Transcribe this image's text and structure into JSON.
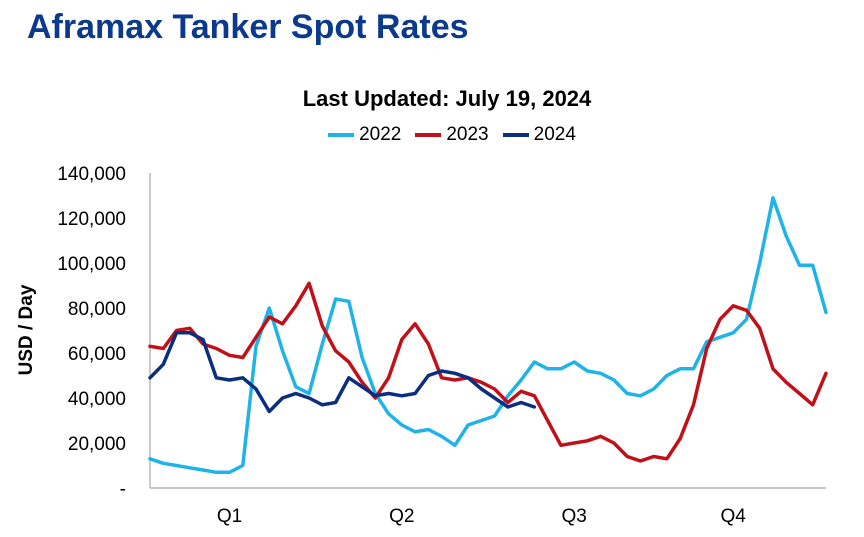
{
  "page": {
    "title": "Aframax Tanker Spot Rates"
  },
  "chart_data": {
    "type": "line",
    "title": "Last Updated: July 19, 2024",
    "xlabel": "",
    "ylabel": "USD / Day",
    "ylim": [
      0,
      140000
    ],
    "yticks": [
      0,
      20000,
      40000,
      60000,
      80000,
      100000,
      120000,
      140000
    ],
    "ytick_labels": [
      "-",
      "20,000",
      "40,000",
      "60,000",
      "80,000",
      "100,000",
      "120,000",
      "140,000"
    ],
    "x_unit": "week",
    "xlim": [
      1,
      52
    ],
    "xticks": [
      7,
      20,
      33,
      45
    ],
    "xtick_labels": [
      "Q1",
      "Q2",
      "Q3",
      "Q4"
    ],
    "grid": false,
    "legend": "top-center",
    "series": [
      {
        "name": "2022",
        "color": "#1fb3e8",
        "x": [
          1,
          2,
          3,
          4,
          5,
          6,
          7,
          8,
          9,
          10,
          11,
          12,
          13,
          14,
          15,
          16,
          17,
          18,
          19,
          20,
          21,
          22,
          23,
          24,
          25,
          26,
          27,
          28,
          29,
          30,
          31,
          32,
          33,
          34,
          35,
          36,
          37,
          38,
          39,
          40,
          41,
          42,
          43,
          44,
          45,
          46,
          47,
          48,
          49,
          50,
          51,
          52
        ],
        "values": [
          13000,
          11000,
          10000,
          9000,
          8000,
          7000,
          7000,
          10000,
          63000,
          80000,
          61000,
          45000,
          42000,
          64000,
          84000,
          83000,
          58000,
          42000,
          33000,
          28000,
          25000,
          26000,
          23000,
          19000,
          28000,
          30000,
          32000,
          41000,
          48000,
          56000,
          53000,
          53000,
          56000,
          52000,
          51000,
          48000,
          42000,
          41000,
          44000,
          50000,
          53000,
          53000,
          65000,
          67000,
          69000,
          75000,
          100000,
          129000,
          112000,
          99000,
          99000,
          78000
        ]
      },
      {
        "name": "2023",
        "color": "#c0111a",
        "x": [
          1,
          2,
          3,
          4,
          5,
          6,
          7,
          8,
          9,
          10,
          11,
          12,
          13,
          14,
          15,
          16,
          17,
          18,
          19,
          20,
          21,
          22,
          23,
          24,
          25,
          26,
          27,
          28,
          29,
          30,
          31,
          32,
          33,
          34,
          35,
          36,
          37,
          38,
          39,
          40,
          41,
          42,
          43,
          44,
          45,
          46,
          47,
          48,
          49,
          50,
          51,
          52
        ],
        "values": [
          63000,
          62000,
          70000,
          71000,
          64000,
          62000,
          59000,
          58000,
          67000,
          76000,
          73000,
          81000,
          91000,
          72000,
          61000,
          56000,
          47000,
          40000,
          49000,
          66000,
          73000,
          64000,
          49000,
          48000,
          49000,
          47000,
          44000,
          38000,
          43000,
          41000,
          30000,
          19000,
          20000,
          21000,
          23000,
          20000,
          14000,
          12000,
          14000,
          13000,
          22000,
          37000,
          62000,
          75000,
          81000,
          79000,
          71000,
          53000,
          47000,
          42000,
          37000,
          51000
        ]
      },
      {
        "name": "2024",
        "color": "#0b2e7f",
        "x": [
          1,
          2,
          3,
          4,
          5,
          6,
          7,
          8,
          9,
          10,
          11,
          12,
          13,
          14,
          15,
          16,
          17,
          18,
          19,
          20,
          21,
          22,
          23,
          24,
          25,
          26,
          27,
          28,
          29,
          30
        ],
        "values": [
          49000,
          55000,
          69000,
          69000,
          66000,
          49000,
          48000,
          49000,
          44000,
          34000,
          40000,
          42000,
          40000,
          37000,
          38000,
          49000,
          45000,
          41000,
          42000,
          41000,
          42000,
          50000,
          52000,
          51000,
          49000,
          44000,
          40000,
          36000,
          38000,
          36000
        ]
      }
    ]
  }
}
